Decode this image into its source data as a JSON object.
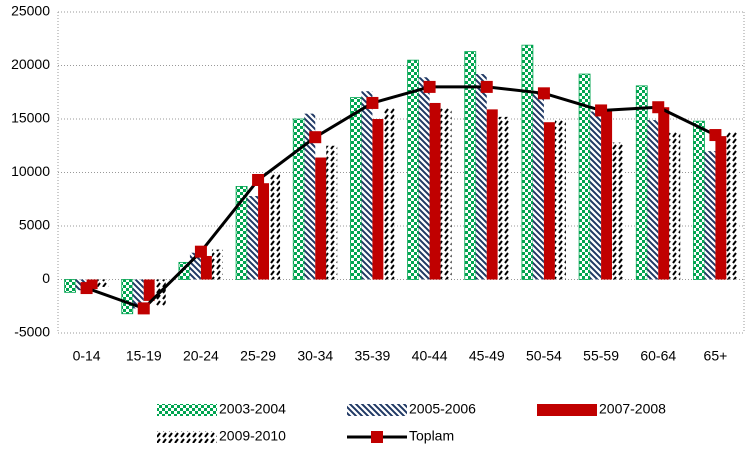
{
  "chart_data": {
    "type": "bar",
    "categories": [
      "0-14",
      "15-19",
      "20-24",
      "25-29",
      "30-34",
      "35-39",
      "40-44",
      "45-49",
      "50-54",
      "55-59",
      "60-64",
      "65+"
    ],
    "series": [
      {
        "name": "2003-2004",
        "color": "#00a550",
        "values": [
          -1200,
          -3200,
          1600,
          8700,
          15000,
          17000,
          20500,
          21300,
          21900,
          19200,
          18100,
          14800
        ]
      },
      {
        "name": "2005-2006",
        "color": "#1f3864",
        "values": [
          -1000,
          -2700,
          2500,
          7800,
          15500,
          17600,
          18900,
          19200,
          17500,
          15700,
          14900,
          12000
        ]
      },
      {
        "name": "2007-2008",
        "color": "#c00000",
        "values": [
          -900,
          -2000,
          2200,
          9000,
          11400,
          15000,
          16500,
          15900,
          14700,
          15800,
          16100,
          13400
        ]
      },
      {
        "name": "2009-2010",
        "color": "#000000",
        "values": [
          -700,
          -2500,
          2800,
          9900,
          12500,
          16000,
          16000,
          15200,
          15000,
          12800,
          13800,
          13800
        ]
      },
      {
        "name": "Toplam",
        "type": "line",
        "color": "#000000",
        "marker_color": "#c00000",
        "values": [
          -800,
          -2700,
          2600,
          9300,
          13300,
          16500,
          18000,
          18000,
          17400,
          15800,
          16100,
          13500
        ]
      }
    ],
    "ylim": [
      -5000,
      25000
    ],
    "yticks": [
      -5000,
      0,
      5000,
      10000,
      15000,
      20000,
      25000
    ],
    "grid": true,
    "legend": "bottom"
  }
}
